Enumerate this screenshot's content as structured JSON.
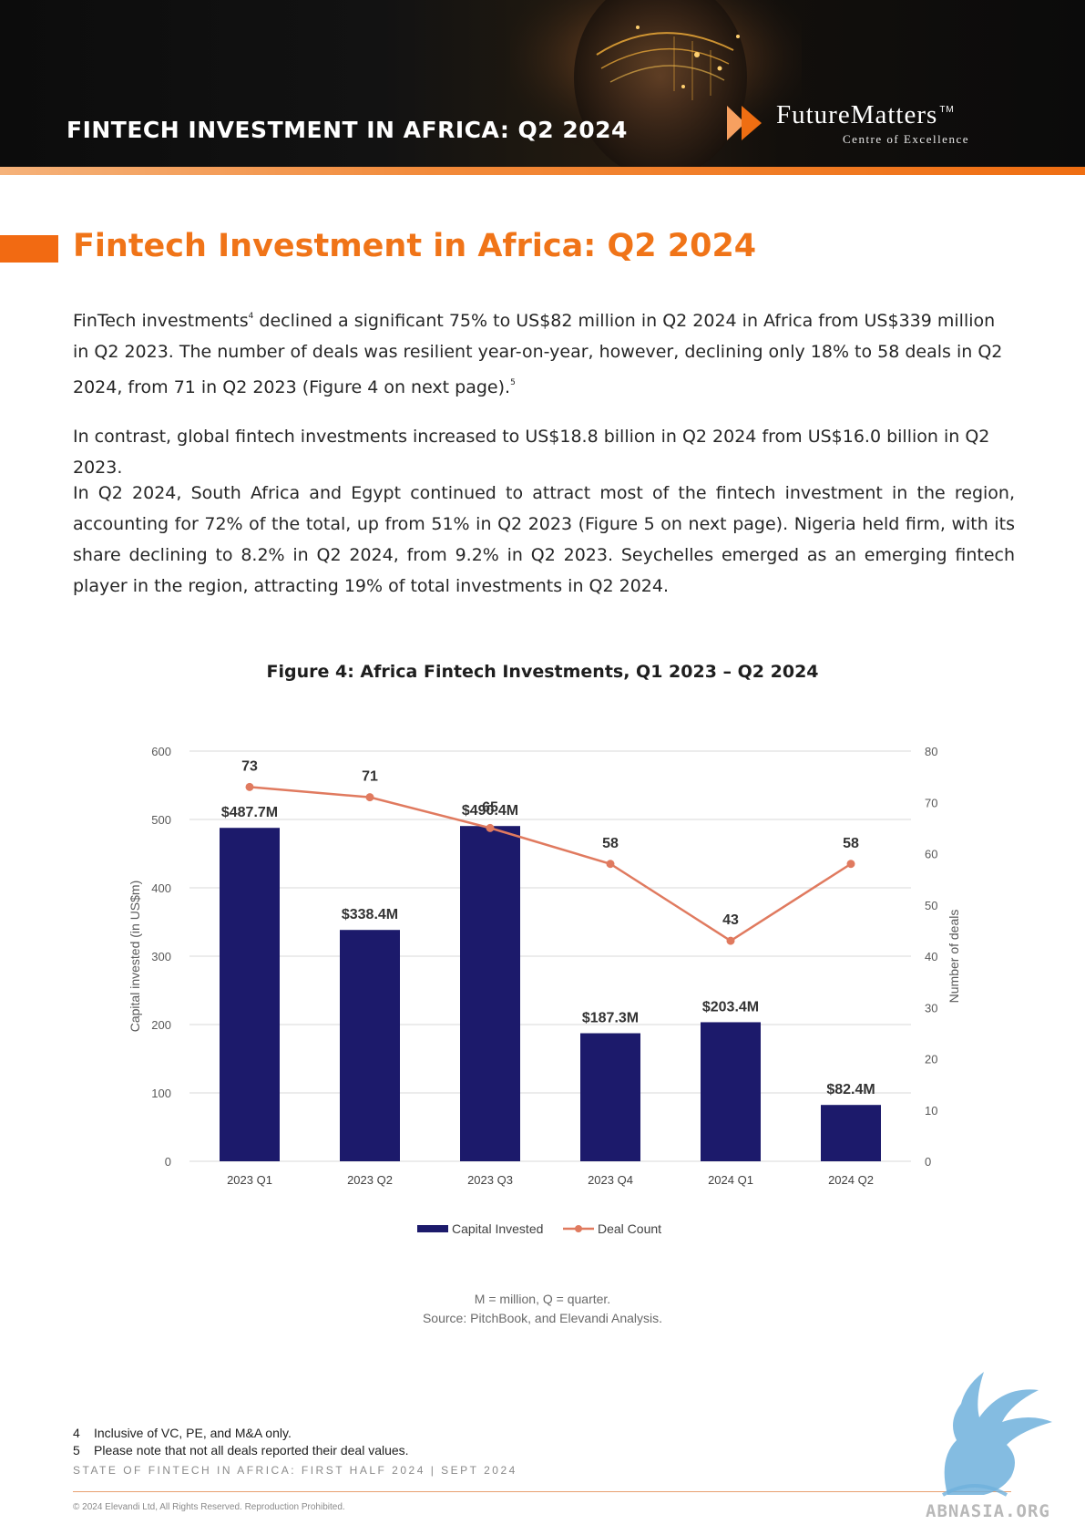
{
  "header": {
    "title": "FINTECH INVESTMENT IN AFRICA: Q2 2024",
    "logo_name": "FutureMatters",
    "logo_tm": "TM",
    "logo_subtitle": "Centre of Excellence",
    "accent_color": "#F26A12"
  },
  "main": {
    "heading": "Fintech Investment in Africa: Q2 2024",
    "p1_a": "FinTech investments",
    "p1_sup1": "4",
    "p1_b": " declined a significant 75% to US$82 million in Q2 2024 in Africa from US$339 million in Q2 2023. The number of deals was resilient year-on-year, however, declining only 18% to 58 deals in Q2 2024, from 71 in Q2 2023 (Figure 4 on next page).",
    "p1_sup2": "5",
    "p2": "In contrast, global fintech investments increased to US$18.8 billion in Q2 2024 from US$16.0 billion in Q2 2023.",
    "p3": "In Q2 2024, South Africa and Egypt continued to attract most of the fintech investment in the region, accounting for 72% of the total, up from 51% in Q2 2023 (Figure 5 on next page). Nigeria held firm, with its share declining to 8.2% in Q2 2024, from 9.2% in Q2 2023. Seychelles emerged as an emerging fintech player in the region, attracting 19% of total investments in Q2 2024."
  },
  "figure": {
    "title": "Figure 4: Africa Fintech Investments, Q1 2023 – Q2 2024",
    "note": "M = million, Q = quarter.",
    "source": "Source: PitchBook, and Elevandi Analysis."
  },
  "chart_data": {
    "type": "bar",
    "title": "Figure 4: Africa Fintech Investments, Q1 2023 – Q2 2024",
    "categories": [
      "2023 Q1",
      "2023 Q2",
      "2023 Q3",
      "2023 Q4",
      "2024 Q1",
      "2024 Q2"
    ],
    "series": [
      {
        "name": "Capital Invested",
        "type": "bar",
        "axis": "left",
        "values": [
          487.7,
          338.4,
          490.4,
          187.3,
          203.4,
          82.4
        ],
        "labels": [
          "$487.7M",
          "$338.4M",
          "$490.4M",
          "$187.3M",
          "$203.4M",
          "$82.4M"
        ],
        "color": "#1C1A6B"
      },
      {
        "name": "Deal Count",
        "type": "line",
        "axis": "right",
        "values": [
          73,
          71,
          65,
          58,
          43,
          58
        ],
        "labels": [
          "73",
          "71",
          "65",
          "58",
          "43",
          "58"
        ],
        "color": "#E07A5F"
      }
    ],
    "ylabel": "Capital invested (in US$m)",
    "y2label": "Number of deals",
    "ylim": [
      0,
      600
    ],
    "y2lim": [
      0,
      80
    ],
    "yticks": [
      "0",
      "100",
      "200",
      "300",
      "400",
      "500",
      "600"
    ],
    "y2ticks": [
      "0",
      "10",
      "20",
      "30",
      "40",
      "50",
      "60",
      "70",
      "80"
    ],
    "grid": true,
    "legend_position": "bottom"
  },
  "footnotes": [
    {
      "num": "4",
      "text": "Inclusive of VC, PE, and M&A only."
    },
    {
      "num": "5",
      "text": "Please note that not all deals reported their deal values."
    }
  ],
  "footer": {
    "report": "STATE OF FINTECH IN AFRICA: FIRST HALF 2024   | SEPT 2024",
    "copyright": "© 2024 Elevandi Ltd, All Rights Reserved. Reproduction Prohibited.",
    "watermark": "ABNASIA.ORG"
  }
}
